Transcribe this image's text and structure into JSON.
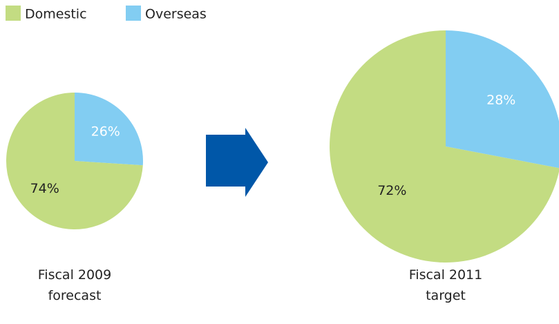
{
  "chart_data": [
    {
      "type": "pie",
      "title": "Fiscal 2009 forecast",
      "categories": [
        "Domestic",
        "Overseas"
      ],
      "colors": [
        "#c3dc82",
        "#82cdf2"
      ],
      "values": [
        74,
        26
      ],
      "value_labels": [
        "74%",
        "26%"
      ]
    },
    {
      "type": "pie",
      "title": "Fiscal 2011 target",
      "values": [
        72,
        28
      ],
      "value_labels": [
        "72%",
        "28%"
      ]
    }
  ]
}
